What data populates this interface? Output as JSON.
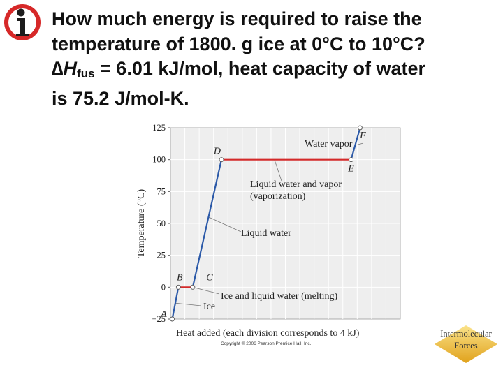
{
  "logo": {
    "icon": "info-person-icon",
    "color": "#d62828"
  },
  "question": {
    "line1": "How much energy is required to raise the",
    "line2": "temperature of 1800. g ice at 0°C to 10°C?",
    "line3_symbol": "∆",
    "line3_H": "H",
    "line3_sub": "fus",
    "line3_rest": " = 6.01 kJ/mol, heat capacity of water",
    "line4": "is 75.2 J/mol-K."
  },
  "chart_data": {
    "type": "line",
    "ylabel": "Temperature (°C)",
    "xlabel": "Heat added (each division corresponds to 4 kJ)",
    "copyright": "Copyright © 2006 Pearson Prentice Hall, Inc.",
    "ylim": [
      -25,
      125
    ],
    "yticks": [
      -25,
      0,
      25,
      50,
      75,
      100,
      125
    ],
    "ytick_labels": [
      "−25",
      "0",
      "25",
      "50",
      "75",
      "100",
      "125"
    ],
    "xlim": [
      0,
      64
    ],
    "x_division_kJ": 4,
    "grid": true,
    "points": [
      {
        "label": "A",
        "x": 0.5,
        "y": -25
      },
      {
        "label": "B",
        "x": 2.2,
        "y": 0
      },
      {
        "label": "C",
        "x": 6.2,
        "y": 0
      },
      {
        "label": "D",
        "x": 14.2,
        "y": 100
      },
      {
        "label": "E",
        "x": 50.3,
        "y": 100
      },
      {
        "label": "F",
        "x": 52.8,
        "y": 125
      }
    ],
    "segments": [
      {
        "from": "A",
        "to": "B",
        "color": "#2b59a8"
      },
      {
        "from": "B",
        "to": "C",
        "color": "#d42a2a"
      },
      {
        "from": "C",
        "to": "D",
        "color": "#2b59a8"
      },
      {
        "from": "D",
        "to": "E",
        "color": "#d42a2a"
      },
      {
        "from": "E",
        "to": "F",
        "color": "#2b59a8"
      }
    ],
    "annotations": {
      "water_vapor": "Water vapor",
      "liquid_vapor_1": "Liquid water and vapor",
      "liquid_vapor_2": "(vaporization)",
      "liquid_water": "Liquid water",
      "ice_liquid": "Ice and liquid water (melting)",
      "ice": "Ice"
    },
    "colors": {
      "plot_bg": "#eeeeee",
      "grid": "#ffffff",
      "heating": "#2b59a8",
      "phase_change": "#d42a2a"
    }
  },
  "badge": {
    "line1": "Intermolecular",
    "line2": "Forces",
    "color": "#f4c430"
  }
}
